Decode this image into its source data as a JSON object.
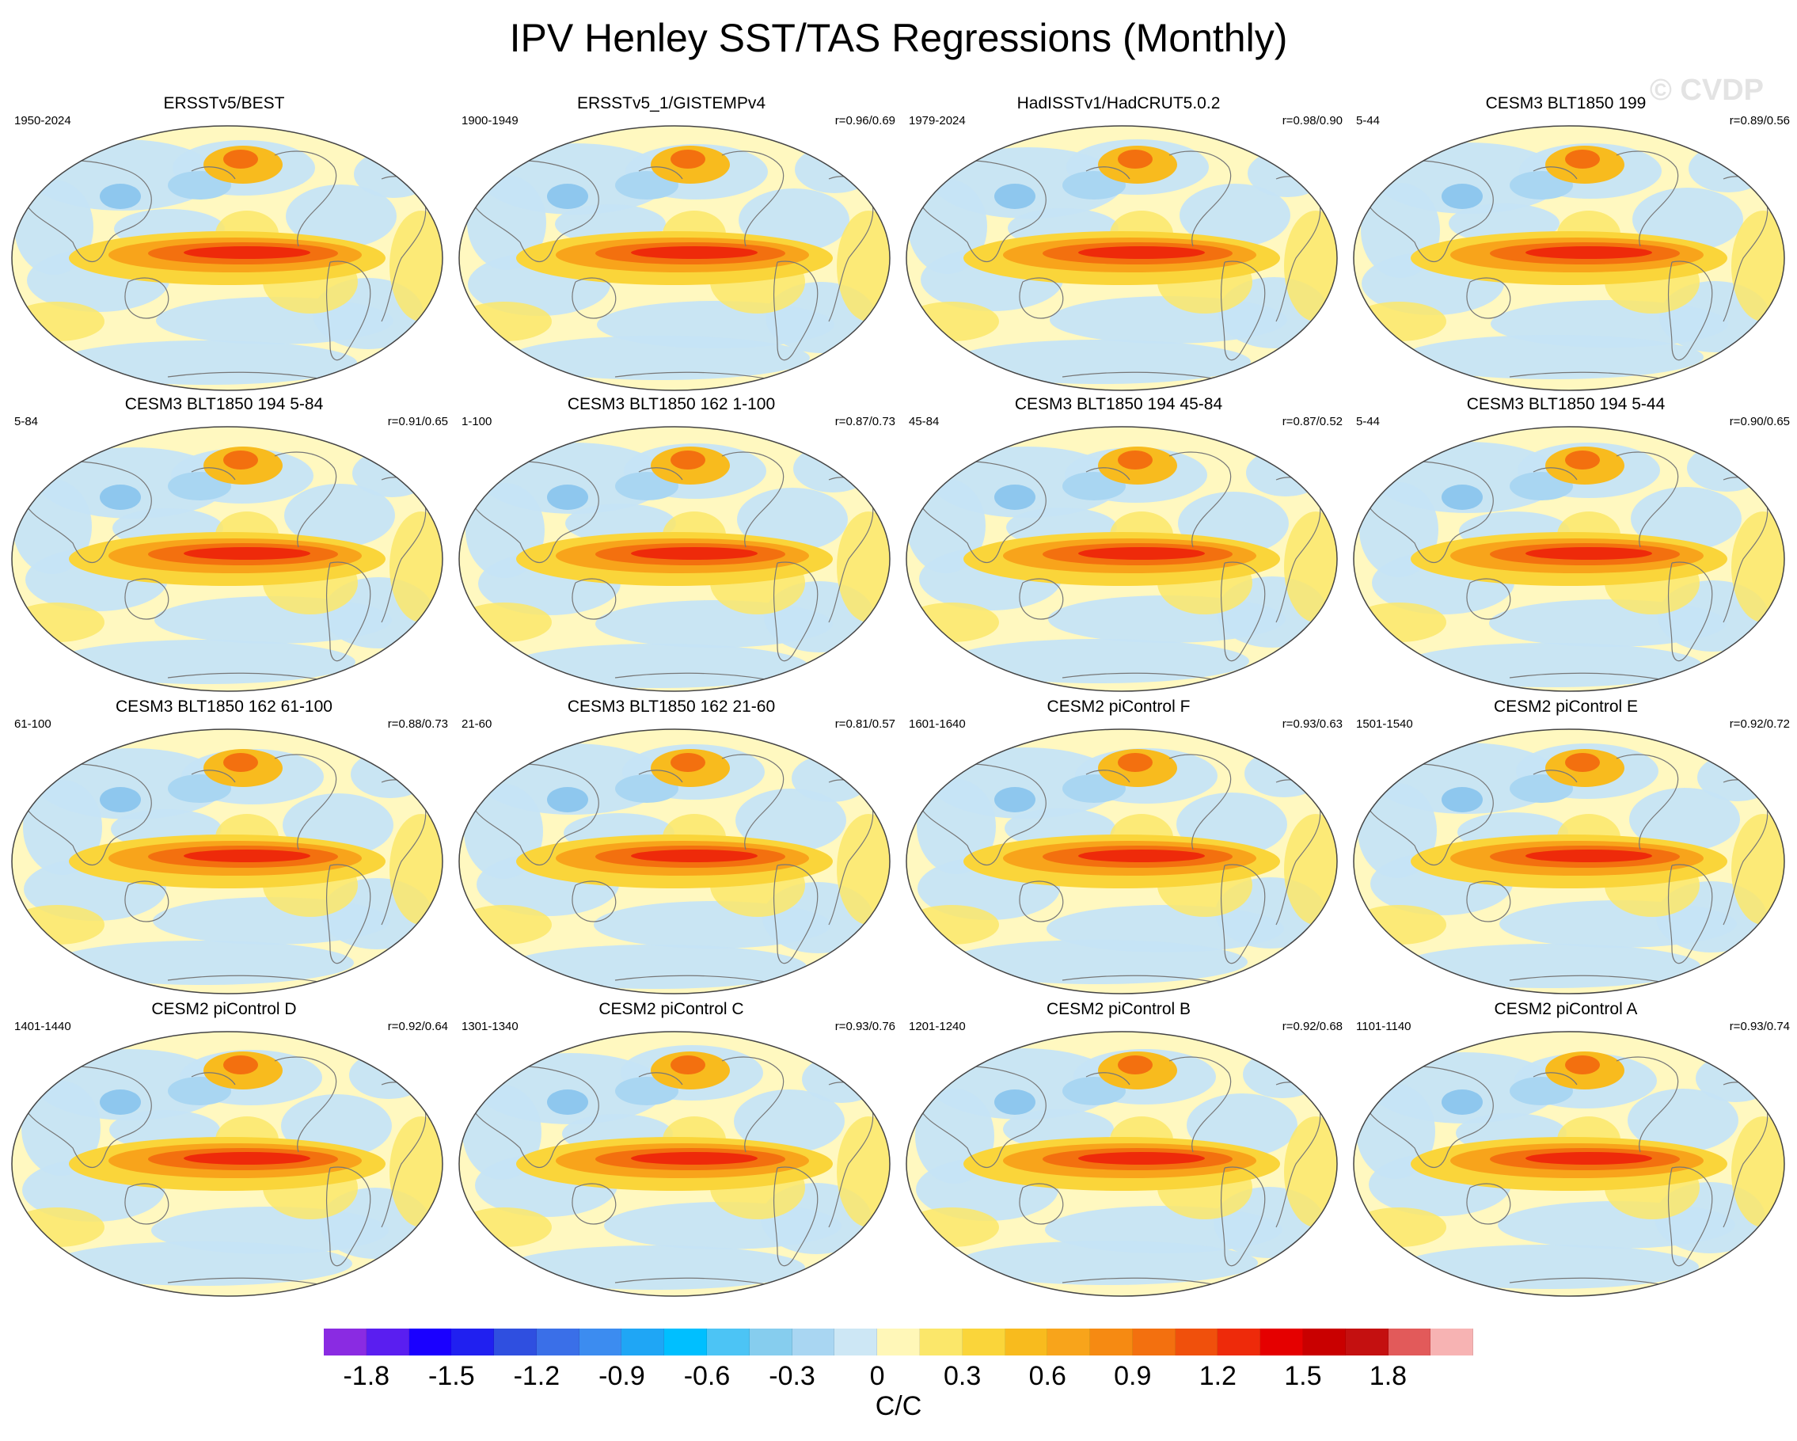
{
  "figure": {
    "title": "IPV Henley SST/TAS Regressions (Monthly)",
    "watermark": "© CVDP",
    "units": "C/C"
  },
  "panels": [
    {
      "title": "ERSSTv5/BEST",
      "years": "1950-2024",
      "corr": ""
    },
    {
      "title": "ERSSTv5_1/GISTEMPv4",
      "years": "1900-1949",
      "corr": "r=0.96/0.69"
    },
    {
      "title": "HadISSTv1/HadCRUT5.0.2",
      "years": "1979-2024",
      "corr": "r=0.98/0.90"
    },
    {
      "title": "CESM3 BLT1850 199",
      "years": "5-44",
      "corr": "r=0.89/0.56"
    },
    {
      "title": "CESM3 BLT1850 194 5-84",
      "years": "5-84",
      "corr": "r=0.91/0.65"
    },
    {
      "title": "CESM3 BLT1850 162 1-100",
      "years": "1-100",
      "corr": "r=0.87/0.73"
    },
    {
      "title": "CESM3 BLT1850 194 45-84",
      "years": "45-84",
      "corr": "r=0.87/0.52"
    },
    {
      "title": "CESM3 BLT1850 194 5-44",
      "years": "5-44",
      "corr": "r=0.90/0.65"
    },
    {
      "title": "CESM3 BLT1850 162 61-100",
      "years": "61-100",
      "corr": "r=0.88/0.73"
    },
    {
      "title": "CESM3 BLT1850 162 21-60",
      "years": "21-60",
      "corr": "r=0.81/0.57"
    },
    {
      "title": "CESM2 piControl F",
      "years": "1601-1640",
      "corr": "r=0.93/0.63"
    },
    {
      "title": "CESM2 piControl E",
      "years": "1501-1540",
      "corr": "r=0.92/0.72"
    },
    {
      "title": "CESM2 piControl D",
      "years": "1401-1440",
      "corr": "r=0.92/0.64"
    },
    {
      "title": "CESM2 piControl C",
      "years": "1301-1340",
      "corr": "r=0.93/0.76"
    },
    {
      "title": "CESM2 piControl B",
      "years": "1201-1240",
      "corr": "r=0.92/0.68"
    },
    {
      "title": "CESM2 piControl A",
      "years": "1101-1140",
      "corr": "r=0.93/0.74"
    }
  ],
  "colorbar": {
    "labels": [
      "-1.8",
      "-1.5",
      "-1.2",
      "-0.9",
      "-0.6",
      "-0.3",
      "0",
      "0.3",
      "0.6",
      "0.9",
      "1.2",
      "1.5",
      "1.8"
    ],
    "colors": [
      "#8a2be2",
      "#5a1ef0",
      "#1a00ff",
      "#2020f0",
      "#2f4fe0",
      "#3a6fe8",
      "#3c8cf0",
      "#1fa6f5",
      "#00bfff",
      "#4cc4f5",
      "#86cdee",
      "#a9d6f2",
      "#cde7f5",
      "#fff7b8",
      "#fbe76a",
      "#fad53a",
      "#f8bb1e",
      "#f8a41b",
      "#f68a12",
      "#f3700f",
      "#f0500c",
      "#ee2a0a",
      "#e50000",
      "#c90000",
      "#c41010",
      "#e25a5a",
      "#f7b3b3"
    ]
  }
}
